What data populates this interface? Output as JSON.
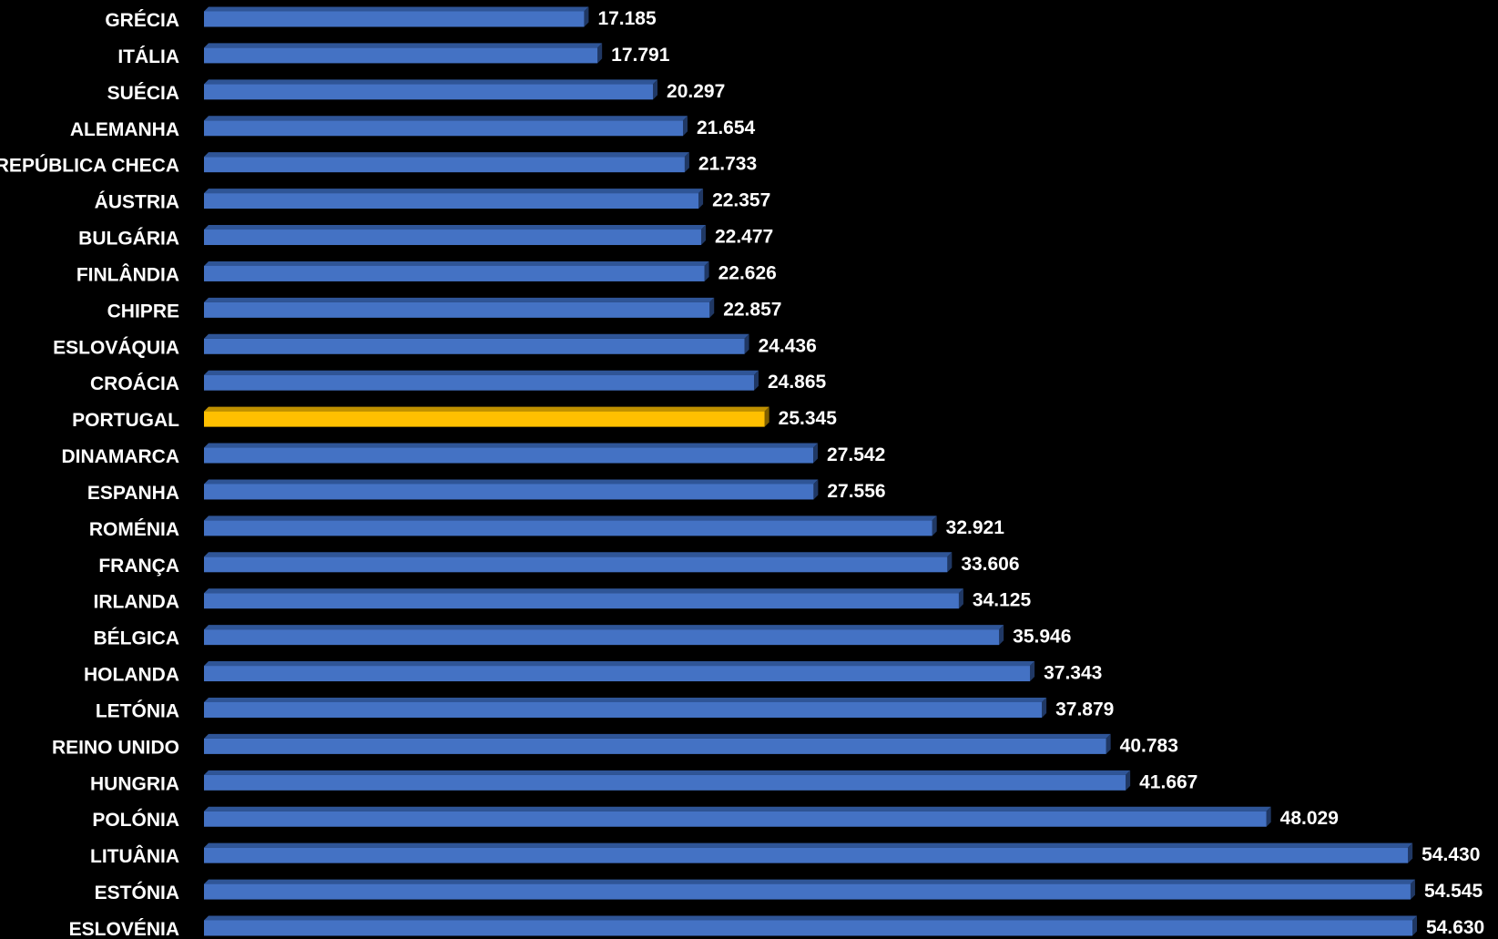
{
  "chart_data": {
    "type": "bar",
    "orientation": "horizontal",
    "title": "",
    "xlabel": "",
    "ylabel": "",
    "grid": false,
    "legend": "none",
    "xlim": [
      0,
      55000
    ],
    "categories": [
      "GRÉCIA",
      "ITÁLIA",
      "SUÉCIA",
      "ALEMANHA",
      "REPÚBLICA CHECA",
      "ÁUSTRIA",
      "BULGÁRIA",
      "FINLÂNDIA",
      "CHIPRE",
      "ESLOVÁQUIA",
      "CROÁCIA",
      "PORTUGAL",
      "DINAMARCA",
      "ESPANHA",
      "ROMÉNIA",
      "FRANÇA",
      "IRLANDA",
      "BÉLGICA",
      "HOLANDA",
      "LETÓNIA",
      "REINO UNIDO",
      "HUNGRIA",
      "POLÓNIA",
      "LITUÂNIA",
      "ESTÓNIA",
      "ESLOVÉNIA"
    ],
    "values": [
      17185,
      17791,
      20297,
      21654,
      21733,
      22357,
      22477,
      22626,
      22857,
      24436,
      24865,
      25345,
      27542,
      27556,
      32921,
      33606,
      34125,
      35946,
      37343,
      37879,
      40783,
      41667,
      48029,
      54430,
      54545,
      54630
    ],
    "value_labels": [
      "17.185",
      "17.791",
      "20.297",
      "21.654",
      "21.733",
      "22.357",
      "22.477",
      "22.626",
      "22.857",
      "24.436",
      "24.865",
      "25.345",
      "27.542",
      "27.556",
      "32.921",
      "33.606",
      "34.125",
      "35.946",
      "37.343",
      "37.879",
      "40.783",
      "41.667",
      "48.029",
      "54.430",
      "54.545",
      "54.630"
    ],
    "highlight": "PORTUGAL",
    "colors": {
      "bar": "#4472C4",
      "bar_top": "#2F5597",
      "bar_side": "#203864",
      "highlight": "#FFC000",
      "highlight_top": "#BF9000",
      "highlight_side": "#7F6000",
      "text": "#FFFFFF",
      "background": "#000000"
    }
  }
}
